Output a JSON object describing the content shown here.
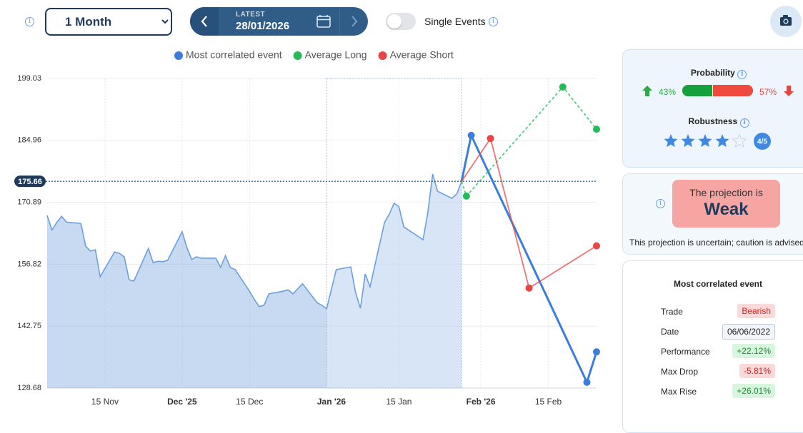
{
  "toolbar": {
    "period": "1 Month",
    "date_caption": "LATEST",
    "date": "28/01/2026",
    "toggle_label": "Single Events"
  },
  "chart_data": {
    "type": "line",
    "x": [
      "2025-11-03",
      "2025-11-04",
      "2025-11-05",
      "2025-11-06",
      "2025-11-07",
      "2025-11-10",
      "2025-11-11",
      "2025-11-12",
      "2025-11-13",
      "2025-11-14",
      "2025-11-17",
      "2025-11-18",
      "2025-11-19",
      "2025-11-20",
      "2025-11-21",
      "2025-11-24",
      "2025-11-25",
      "2025-11-26",
      "2025-11-27",
      "2025-11-28",
      "2025-12-01",
      "2025-12-02",
      "2025-12-03",
      "2025-12-04",
      "2025-12-05",
      "2025-12-08",
      "2025-12-09",
      "2025-12-10",
      "2025-12-11",
      "2025-12-12",
      "2025-12-15",
      "2025-12-16",
      "2025-12-17",
      "2025-12-18",
      "2025-12-19",
      "2025-12-22",
      "2025-12-23",
      "2025-12-24",
      "2025-12-26",
      "2025-12-29",
      "2025-12-30",
      "2025-12-31",
      "2026-01-02",
      "2026-01-05",
      "2026-01-06",
      "2026-01-07",
      "2026-01-08",
      "2026-01-09",
      "2026-01-12",
      "2026-01-13",
      "2026-01-14",
      "2026-01-15",
      "2026-01-16",
      "2026-01-20",
      "2026-01-21",
      "2026-01-22",
      "2026-01-23",
      "2026-01-26",
      "2026-01-27",
      "2026-01-28"
    ],
    "values": [
      167.9,
      164.6,
      166.3,
      167.7,
      166.4,
      166.1,
      160.9,
      159.8,
      160.1,
      154.0,
      159.6,
      159.3,
      158.5,
      153.3,
      153.0,
      160.4,
      157.2,
      157.5,
      157.4,
      157.7,
      164.2,
      160.6,
      157.9,
      158.5,
      158.2,
      158.2,
      156.1,
      158.8,
      156.1,
      155.6,
      150.7,
      148.8,
      147.2,
      147.5,
      150.1,
      150.7,
      151.0,
      150.1,
      152.4,
      148.1,
      147.5,
      146.7,
      155.6,
      156.2,
      150.4,
      146.8,
      154.6,
      151.7,
      166.3,
      168.2,
      170.7,
      169.9,
      165.3,
      162.4,
      168.6,
      177.3,
      173.4,
      171.8,
      172.8,
      175.66
    ],
    "color": "#6b9fdc",
    "series": [
      {
        "name": "Most correlated event",
        "color": "#3b7ddd",
        "line": "solid",
        "x": [
          "2026-01-28",
          "2026-01-30",
          "2026-02-23",
          "2026-02-25"
        ],
        "values": [
          175.66,
          186.1,
          130.0,
          136.9
        ]
      },
      {
        "name": "Average Long",
        "color": "#22bb55",
        "line": "dashed",
        "x": [
          "2026-01-28",
          "2026-01-29",
          "2026-02-18",
          "2026-02-25"
        ],
        "values": [
          175.66,
          172.3,
          197.1,
          187.5
        ]
      },
      {
        "name": "Average Short",
        "color": "#e84545",
        "line": "solid",
        "x": [
          "2026-01-28",
          "2026-02-03",
          "2026-02-11",
          "2026-02-25"
        ],
        "values": [
          175.66,
          185.4,
          151.4,
          161.0
        ]
      }
    ],
    "current_value": 175.66,
    "highlight": [
      "2025-12-31",
      "2026-01-28"
    ],
    "xlim": [
      "2025-11-03",
      "2026-02-25"
    ],
    "xticks": [
      {
        "value": "2025-11-15",
        "label": "15 Nov"
      },
      {
        "value": "2025-12-01",
        "label": "Dec '25"
      },
      {
        "value": "2025-12-15",
        "label": "15 Dec"
      },
      {
        "value": "2026-01-01",
        "label": "Jan '26"
      },
      {
        "value": "2026-01-15",
        "label": "15 Jan"
      },
      {
        "value": "2026-02-01",
        "label": "Feb '26"
      },
      {
        "value": "2026-02-15",
        "label": "15 Feb"
      }
    ],
    "ylim": [
      128.68,
      199.03
    ],
    "yticks": [
      128.68,
      142.75,
      156.82,
      170.89,
      184.96,
      199.03
    ],
    "grid": true
  },
  "probability": {
    "title": "Probability",
    "up": {
      "value": 43,
      "label": "43%"
    },
    "down": {
      "value": 57,
      "label": "57%"
    }
  },
  "robustness": {
    "title": "Robustness",
    "stars": {
      "value": 4,
      "label": "4/5"
    }
  },
  "projection": {
    "caption": "The projection is",
    "strength": "Weak",
    "note": "This projection is uncertain; caution is advised"
  },
  "event": {
    "title": "Most correlated event",
    "rows": [
      [
        "Trade",
        "Bearish"
      ],
      [
        "Date",
        "06/06/2022"
      ],
      [
        "Performance",
        "+22.12%"
      ],
      [
        "Max Drop",
        "-5.81%"
      ],
      [
        "Max Rise",
        "+26.01%"
      ]
    ]
  }
}
